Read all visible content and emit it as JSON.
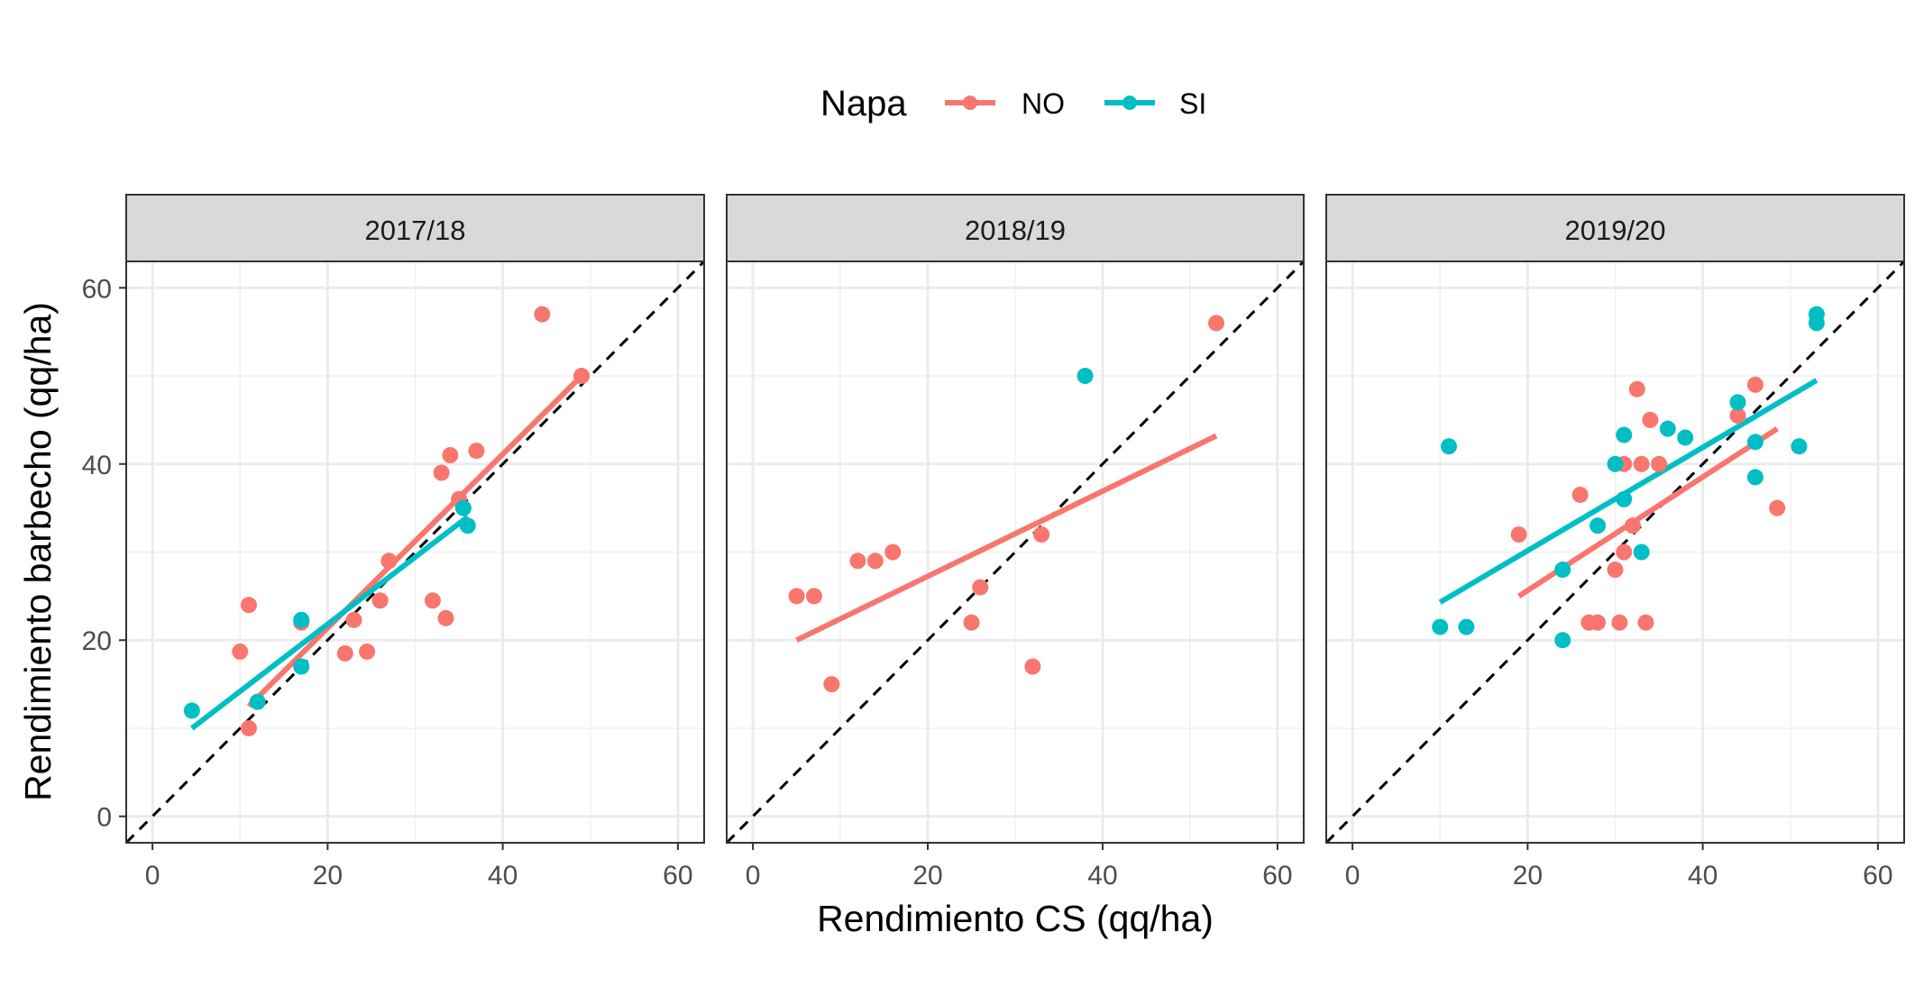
{
  "chart_data": {
    "type": "scatter",
    "xlabel": "Rendimiento CS (qq/ha)",
    "ylabel": "Rendimiento barbecho (qq/ha)",
    "xlim": [
      -3,
      63
    ],
    "ylim": [
      -3,
      63
    ],
    "xticks": [
      0,
      20,
      40,
      60
    ],
    "yticks": [
      0,
      20,
      40,
      60
    ],
    "grid": true,
    "reference_line": "y = x (dashed, black)",
    "legend": {
      "title": "Napa",
      "placement": "top",
      "entries": [
        {
          "label": "NO",
          "color": "#F8766D"
        },
        {
          "label": "SI",
          "color": "#00BFC4"
        }
      ]
    },
    "panels": [
      {
        "title": "2017/18",
        "series": [
          {
            "name": "NO",
            "color": "#F8766D",
            "points": [
              [
                10,
                18.7
              ],
              [
                11,
                24
              ],
              [
                11,
                10
              ],
              [
                17,
                22
              ],
              [
                22,
                18.5
              ],
              [
                23,
                22.3
              ],
              [
                24.5,
                18.7
              ],
              [
                26,
                24.5
              ],
              [
                27,
                29
              ],
              [
                32,
                24.5
              ],
              [
                33,
                39
              ],
              [
                33.5,
                22.5
              ],
              [
                34,
                41
              ],
              [
                35,
                36
              ],
              [
                37,
                41.5
              ],
              [
                44.5,
                57
              ],
              [
                49,
                50
              ]
            ],
            "fit": [
              [
                11,
                12.5
              ],
              [
                49,
                50
              ]
            ]
          },
          {
            "name": "SI",
            "color": "#00BFC4",
            "points": [
              [
                4.5,
                12
              ],
              [
                12,
                13
              ],
              [
                17,
                22.3
              ],
              [
                17,
                17
              ],
              [
                35.5,
                35
              ],
              [
                36,
                33
              ]
            ],
            "fit": [
              [
                4.5,
                10
              ],
              [
                36,
                34
              ]
            ]
          }
        ]
      },
      {
        "title": "2018/19",
        "series": [
          {
            "name": "NO",
            "color": "#F8766D",
            "points": [
              [
                5,
                25
              ],
              [
                7,
                25
              ],
              [
                9,
                15
              ],
              [
                12,
                29
              ],
              [
                14,
                29
              ],
              [
                16,
                30
              ],
              [
                25,
                22
              ],
              [
                26,
                26
              ],
              [
                32,
                17
              ],
              [
                33,
                32
              ],
              [
                53,
                56
              ]
            ],
            "fit": [
              [
                5,
                20
              ],
              [
                53,
                43.2
              ]
            ]
          },
          {
            "name": "SI",
            "color": "#00BFC4",
            "points": [
              [
                38,
                50
              ]
            ],
            "fit": []
          }
        ]
      },
      {
        "title": "2019/20",
        "series": [
          {
            "name": "NO",
            "color": "#F8766D",
            "points": [
              [
                19,
                32
              ],
              [
                26,
                36.5
              ],
              [
                27,
                22
              ],
              [
                28,
                22
              ],
              [
                30,
                28
              ],
              [
                30.5,
                22
              ],
              [
                31,
                30
              ],
              [
                31,
                40
              ],
              [
                32,
                33
              ],
              [
                32.5,
                48.5
              ],
              [
                33,
                40
              ],
              [
                33.5,
                22
              ],
              [
                34,
                45
              ],
              [
                35,
                40
              ],
              [
                44,
                45.5
              ],
              [
                46,
                49
              ],
              [
                48.5,
                35
              ]
            ],
            "fit": [
              [
                19,
                25
              ],
              [
                48.5,
                44
              ]
            ]
          },
          {
            "name": "SI",
            "color": "#00BFC4",
            "points": [
              [
                10,
                21.5
              ],
              [
                11,
                42
              ],
              [
                13,
                21.5
              ],
              [
                24,
                28
              ],
              [
                24,
                20
              ],
              [
                28,
                33
              ],
              [
                30,
                40
              ],
              [
                31,
                43.3
              ],
              [
                31,
                36
              ],
              [
                33,
                30
              ],
              [
                36,
                44
              ],
              [
                38,
                43
              ],
              [
                44,
                47
              ],
              [
                46,
                42.5
              ],
              [
                46,
                38.5
              ],
              [
                51,
                42
              ],
              [
                53,
                57
              ],
              [
                53,
                56
              ]
            ],
            "fit": [
              [
                10,
                24.3
              ],
              [
                53,
                49.5
              ]
            ]
          }
        ]
      }
    ]
  }
}
